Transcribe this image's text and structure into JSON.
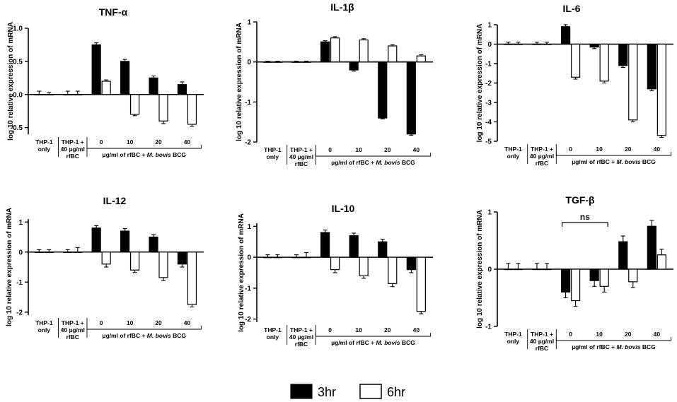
{
  "figure": {
    "categories": [
      "THP-1 only",
      "THP-1 + 40 µg/ml rfBC",
      "0",
      "10",
      "20",
      "40"
    ],
    "category_lines": [
      [
        "THP-1",
        "only"
      ],
      [
        "THP-1 +",
        "40 µg/ml",
        "rfBC"
      ],
      [
        "0"
      ],
      [
        "10"
      ],
      [
        "20"
      ],
      [
        "40"
      ]
    ],
    "group_label_prefix": "µg/ml of rfBC + ",
    "group_label_italic": "M. bovis",
    "group_label_suffix": " BCG",
    "ylabel": "log 10 relative expression of mRNA",
    "legend": [
      {
        "name": "3hr",
        "color": "#000000"
      },
      {
        "name": "6hr",
        "color": "#ffffff"
      }
    ]
  },
  "chart_data": [
    {
      "type": "bar",
      "title": "TNF-α",
      "ylabel": "log 10 relative expression of mRNA",
      "ylim": [
        -0.6,
        1.0
      ],
      "yticks": [
        -0.5,
        0.0,
        0.5,
        1.0
      ],
      "ytick_labels": [
        "-0.5",
        "0.0",
        "0.5",
        "1.0"
      ],
      "categories": [
        "THP-1 only",
        "THP-1 + 40 µg/ml rfBC",
        "0",
        "10",
        "20",
        "40"
      ],
      "series": [
        {
          "name": "3hr",
          "values": [
            0.0,
            0.0,
            0.75,
            0.5,
            0.25,
            0.15
          ],
          "errors": [
            0.05,
            0.05,
            0.03,
            0.03,
            0.03,
            0.04
          ]
        },
        {
          "name": "6hr",
          "values": [
            0.0,
            0.0,
            0.2,
            -0.3,
            -0.4,
            -0.45
          ],
          "errors": [
            0.03,
            0.05,
            0.02,
            0.02,
            0.04,
            0.03
          ]
        }
      ]
    },
    {
      "type": "bar",
      "title": "IL-1β",
      "ylabel": "log 10 relative expression of mRNA",
      "ylim": [
        -2,
        1
      ],
      "yticks": [
        -2,
        -1,
        0,
        1
      ],
      "ytick_labels": [
        "-2",
        "-1",
        "0",
        "1"
      ],
      "categories": [
        "THP-1 only",
        "THP-1 + 40 µg/ml rfBC",
        "0",
        "10",
        "20",
        "40"
      ],
      "series": [
        {
          "name": "3hr",
          "values": [
            0.0,
            0.0,
            0.5,
            -0.2,
            -1.4,
            -1.8
          ],
          "errors": [
            0.02,
            0.02,
            0.03,
            0.03,
            0.02,
            0.03
          ]
        },
        {
          "name": "6hr",
          "values": [
            0.0,
            0.0,
            0.6,
            0.55,
            0.4,
            0.15
          ],
          "errors": [
            0.02,
            0.02,
            0.03,
            0.03,
            0.03,
            0.03
          ]
        }
      ]
    },
    {
      "type": "bar",
      "title": "IL-6",
      "ylabel": "log 10 relative expression of mRNA",
      "ylim": [
        -5,
        1
      ],
      "yticks": [
        -5,
        -4,
        -3,
        -2,
        -1,
        0,
        1
      ],
      "ytick_labels": [
        "-5",
        "-4",
        "-3",
        "-2",
        "-1",
        "0",
        "1"
      ],
      "categories": [
        "THP-1 only",
        "THP-1 + 40 µg/ml rfBC",
        "0",
        "10",
        "20",
        "40"
      ],
      "series": [
        {
          "name": "3hr",
          "values": [
            0.0,
            0.0,
            0.9,
            -0.15,
            -1.1,
            -2.3
          ],
          "errors": [
            0.1,
            0.1,
            0.1,
            0.08,
            0.1,
            0.1
          ]
        },
        {
          "name": "6hr",
          "values": [
            0.0,
            0.0,
            -1.7,
            -1.9,
            -3.9,
            -4.7
          ],
          "errors": [
            0.1,
            0.1,
            0.1,
            0.1,
            0.1,
            0.1
          ]
        }
      ]
    },
    {
      "type": "bar",
      "title": "IL-12",
      "ylabel": "log 10 relative expression of mRNA",
      "ylim": [
        -2.1,
        1.1
      ],
      "yticks": [
        -2,
        -1,
        0,
        1
      ],
      "ytick_labels": [
        "-2",
        "-1",
        "0",
        "1"
      ],
      "categories": [
        "THP-1 only",
        "THP-1 + 40 µg/ml rfBC",
        "0",
        "10",
        "20",
        "40"
      ],
      "series": [
        {
          "name": "3hr",
          "values": [
            0.0,
            0.0,
            0.8,
            0.7,
            0.5,
            -0.4
          ],
          "errors": [
            0.08,
            0.08,
            0.08,
            0.08,
            0.08,
            0.1
          ]
        },
        {
          "name": "6hr",
          "values": [
            0.0,
            0.0,
            -0.4,
            -0.6,
            -0.85,
            -1.75
          ],
          "errors": [
            0.08,
            0.15,
            0.1,
            0.08,
            0.1,
            0.08
          ]
        }
      ]
    },
    {
      "type": "bar",
      "title": "IL-10",
      "ylabel": "log 10 relative expression of mRNA",
      "ylim": [
        -2.1,
        1.1
      ],
      "yticks": [
        -2,
        -1,
        0,
        1
      ],
      "ytick_labels": [
        "-2",
        "-1",
        "0",
        "1"
      ],
      "categories": [
        "THP-1 only",
        "THP-1 + 40 µg/ml rfBC",
        "0",
        "10",
        "20",
        "40"
      ],
      "series": [
        {
          "name": "3hr",
          "values": [
            0.0,
            0.0,
            0.8,
            0.7,
            0.5,
            -0.4
          ],
          "errors": [
            0.08,
            0.08,
            0.08,
            0.08,
            0.08,
            0.1
          ]
        },
        {
          "name": "6hr",
          "values": [
            0.0,
            0.0,
            -0.4,
            -0.6,
            -0.85,
            -1.75
          ],
          "errors": [
            0.08,
            0.15,
            0.1,
            0.08,
            0.1,
            0.08
          ]
        }
      ]
    },
    {
      "type": "bar",
      "title": "TGF-β",
      "ylabel": "log 10 relative expression of mRNA",
      "ylim": [
        -1,
        1
      ],
      "yticks": [
        -1,
        0,
        1
      ],
      "ytick_labels": [
        "-1",
        "0",
        "1"
      ],
      "categories": [
        "THP-1 only",
        "THP-1 + 40 µg/ml rfBC",
        "0",
        "10",
        "20",
        "40"
      ],
      "series": [
        {
          "name": "3hr",
          "values": [
            0.0,
            0.0,
            -0.4,
            -0.2,
            0.48,
            0.75
          ],
          "errors": [
            0.1,
            0.1,
            0.1,
            0.1,
            0.1,
            0.1
          ]
        },
        {
          "name": "6hr",
          "values": [
            0.0,
            0.0,
            -0.55,
            -0.3,
            -0.22,
            0.25
          ],
          "errors": [
            0.1,
            0.1,
            0.1,
            0.1,
            0.1,
            0.1
          ]
        }
      ],
      "annotation": {
        "text": "ns",
        "from_category": "0",
        "to_category": "10"
      }
    }
  ]
}
